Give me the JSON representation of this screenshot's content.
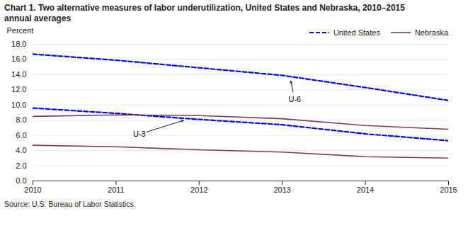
{
  "chart_data": {
    "type": "line",
    "title": "Chart 1. Two alternative measures of labor underutilization, United States and Nebraska, 2010–2015",
    "subtitle": "annual averages",
    "source": "Source: U.S. Bureau of Labor Statistics.",
    "y_label": "Percent",
    "x": [
      2010,
      2011,
      2012,
      2013,
      2014,
      2015
    ],
    "series": [
      {
        "name": "United States",
        "color": "#0000EE",
        "line_style": "dashed",
        "values": [
          16.7,
          15.9,
          14.9,
          13.9,
          12.3,
          10.6
        ]
      },
      {
        "name": "United States",
        "color": "#0000EE",
        "line_style": "dashed",
        "values": [
          9.6,
          8.9,
          8.1,
          7.4,
          6.2,
          5.3
        ]
      },
      {
        "name": "Nebraska",
        "color": "#7B3B5E",
        "line_style": "solid",
        "values": [
          8.5,
          8.7,
          8.6,
          8.2,
          7.3,
          6.8
        ]
      },
      {
        "name": "Nebraska",
        "color": "#7B3B5E",
        "line_style": "solid",
        "values": [
          4.7,
          4.5,
          4.1,
          3.8,
          3.2,
          3.0
        ]
      }
    ],
    "xlim": [
      2010,
      2015
    ],
    "xticks": [
      2010,
      2011,
      2012,
      2013,
      2014,
      2015
    ],
    "ylim": [
      0.0,
      18.0
    ],
    "yticks": [
      {
        "value": 0.0,
        "label": "0.0"
      },
      {
        "value": 2.0,
        "label": "2.0"
      },
      {
        "value": 4.0,
        "label": "4.0"
      },
      {
        "value": 6.0,
        "label": "6.0"
      },
      {
        "value": 8.0,
        "label": "8.0"
      },
      {
        "value": 10.0,
        "label": "10.0"
      },
      {
        "value": 12.0,
        "label": "12.0"
      },
      {
        "value": 14.0,
        "label": "14.0"
      },
      {
        "value": 16.0,
        "label": "16.0"
      },
      {
        "value": 18.0,
        "label": "18.0"
      }
    ],
    "grid": true,
    "legend": "top-right",
    "annotations": [
      {
        "text": "U-6",
        "x": 2013.15,
        "y": 10.7,
        "arrow_x": 2013.1,
        "arrow_y": 13.25
      },
      {
        "text": "U-3",
        "x": 2011.28,
        "y": 6.15,
        "arrow_x": 2011.82,
        "arrow_y": 8.0
      }
    ]
  }
}
